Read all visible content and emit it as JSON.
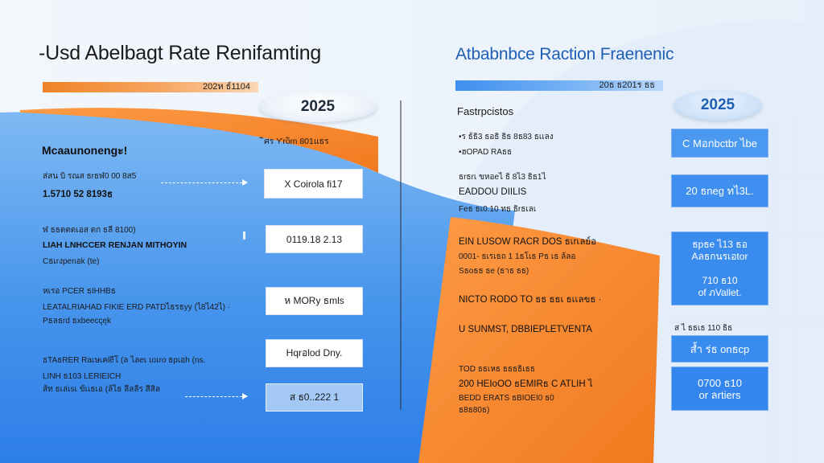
{
  "left": {
    "title": "-Usd Abelbagt Rate Renifamting",
    "bar_label": "202ห ธ์1104",
    "year_pill": "2025",
    "callout": "ิศร Ƴroิm 801แธร",
    "section_heading": "Mcaaunonengะ!",
    "groups": [
      {
        "lines": [
          "ส่สน บิ รณส ธrธฬ0 00 8ส5",
          "1.5710 52 8193ธ"
        ],
        "box": "X  Coirola fi17"
      },
      {
        "lines": [
          "ฬ ธธตตตเอส ตก ธลี 8100)",
          "LIAH LNHCCER RENJAN MITHOYIN",
          "Cธเrงpenอk (te)"
        ],
        "box": "0119.18 2.13"
      },
      {
        "lines": [
          "หเรอ PCER ธIHHBธ",
          "LEATALRIAHAD FIKIE ERD PATDไธรธyy (ไ8ไ42ไ) ·",
          "Pธลธrd ธxbeeccุeุk"
        ],
        "box": "ห MORy ธmls"
      },
      {
        "lines": [
          "ธTAธRER Raเษเคleีโ (ล ไลeเ เoเro ธpเอh (ns.",
          "LINH ธ103 LERIEICH",
          "ส้ท ธเล่เsเ ข้เเธเอ (ล้ไธ ลีลลีร สีสิล"
        ],
        "box": "Hqrอlod Dny."
      },
      {
        "lines": [],
        "box": "ส  ธ0..222 1"
      }
    ]
  },
  "right": {
    "title": "Atbabnbce Raction Fraenenic",
    "bar_label": "20ธ ธ201ร ธธ",
    "year_pill": "2025",
    "heading": "Fastrpcistos",
    "rows": [
      "•ร ธ้ธิ3 ธอธิ ธิธ 8ธ83 ธเเลง",
      "•ฮOPAD RAธธ",
      "ธrธrเ ขหอeไ ธิ 8ไ3 ธิธ1ไ",
      "EADDOU DIILIS",
      "Feธ ธเ0.10 ทธ ธิrธเลเ",
      "EIN LUSOW RACR DOS ธเrเลย์อ",
      "0001- ธเรเธถ 1 1ธโเธ Pธ เธ ล้ลอ",
      "Sธoธธ ธe (ธาธ ธธ)",
      "NICTO RODO TO ธธ ธธเ ธเเลขธ ·",
      "U SUNMST, DBBIEPLETVENTA",
      "TOD ธธเหธ ธธธธิเธธ",
      "200 HEIoOO ธEMIRธ C ATLIH ไ",
      "BEDD ERATS ธBIOEI0 ธ0",
      "ธ8ธ80ธ)"
    ],
    "blue_boxes": [
      "C  Mอกbctbr ไbe",
      "20 ธneg ทไ3L.",
      "ธpธe ไ13 ธอ\nAลธกนรเอtor\n\n710 ธ10\nof ภVallet.",
      "ส้ำ ร่ธ onธcp",
      "0700 ธ10\nor ลrtiers"
    ],
    "small_label": "ส ไ ธธเธ 110 ธิธ"
  }
}
